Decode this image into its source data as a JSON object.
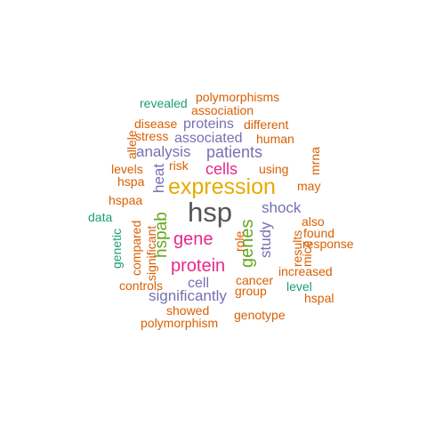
{
  "palette": {
    "gray": "#555555",
    "orange": "#d95f02",
    "gold": "#e6ab02",
    "magenta": "#e7298a",
    "green": "#66a61e",
    "purple": "#7570b3",
    "teal": "#1b9e77"
  },
  "words": [
    {
      "text": "hsp",
      "color": "gray"
    },
    {
      "text": "expression",
      "color": "gold"
    },
    {
      "text": "protein",
      "color": "magenta"
    },
    {
      "text": "gene",
      "color": "magenta"
    },
    {
      "text": "cells",
      "color": "magenta"
    },
    {
      "text": "genes",
      "color": "green",
      "vertical": true
    },
    {
      "text": "hspab",
      "color": "green",
      "vertical": true
    },
    {
      "text": "patients",
      "color": "purple"
    },
    {
      "text": "analysis",
      "color": "purple"
    },
    {
      "text": "shock",
      "color": "purple"
    },
    {
      "text": "study",
      "color": "purple",
      "vertical": true
    },
    {
      "text": "heat",
      "color": "purple",
      "vertical": true
    },
    {
      "text": "significantly",
      "color": "purple"
    },
    {
      "text": "proteins",
      "color": "purple"
    },
    {
      "text": "associated",
      "color": "purple"
    },
    {
      "text": "cell",
      "color": "purple"
    },
    {
      "text": "polymorphisms",
      "color": "orange"
    },
    {
      "text": "association",
      "color": "orange"
    },
    {
      "text": "different",
      "color": "orange"
    },
    {
      "text": "disease",
      "color": "orange"
    },
    {
      "text": "stress",
      "color": "orange"
    },
    {
      "text": "human",
      "color": "orange"
    },
    {
      "text": "allele",
      "color": "orange",
      "vertical": true
    },
    {
      "text": "mrna",
      "color": "orange",
      "vertical": true
    },
    {
      "text": "levels",
      "color": "orange"
    },
    {
      "text": "risk",
      "color": "orange"
    },
    {
      "text": "using",
      "color": "orange"
    },
    {
      "text": "hspa",
      "color": "orange"
    },
    {
      "text": "may",
      "color": "orange"
    },
    {
      "text": "hspaa",
      "color": "orange"
    },
    {
      "text": "also",
      "color": "orange"
    },
    {
      "text": "found",
      "color": "orange"
    },
    {
      "text": "response",
      "color": "orange"
    },
    {
      "text": "compared",
      "color": "orange",
      "vertical": true
    },
    {
      "text": "significant",
      "color": "orange",
      "vertical": true
    },
    {
      "text": "role",
      "color": "orange",
      "vertical": true
    },
    {
      "text": "results",
      "color": "orange",
      "vertical": true
    },
    {
      "text": "mice",
      "color": "orange",
      "vertical": true
    },
    {
      "text": "increased",
      "color": "orange"
    },
    {
      "text": "cancer",
      "color": "orange"
    },
    {
      "text": "controls",
      "color": "orange"
    },
    {
      "text": "group",
      "color": "orange"
    },
    {
      "text": "hspal",
      "color": "orange"
    },
    {
      "text": "showed",
      "color": "orange"
    },
    {
      "text": "genotype",
      "color": "orange"
    },
    {
      "text": "polymorphism",
      "color": "orange"
    },
    {
      "text": "revealed",
      "color": "teal"
    },
    {
      "text": "data",
      "color": "teal"
    },
    {
      "text": "genetic",
      "color": "teal",
      "vertical": true
    },
    {
      "text": "level",
      "color": "teal"
    }
  ]
}
